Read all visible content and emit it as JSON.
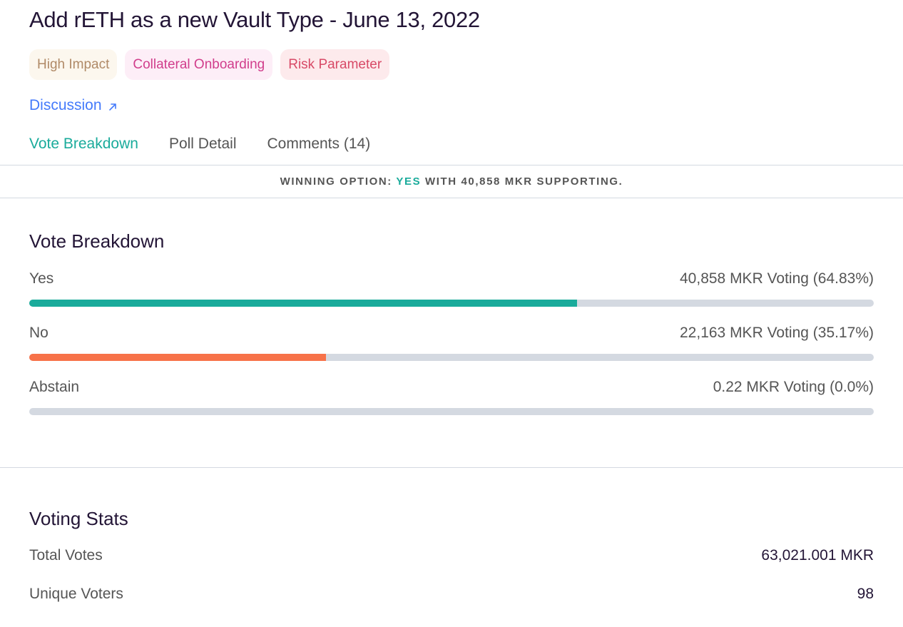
{
  "poll": {
    "title": "Add rETH as a new Vault Type - June 13, 2022",
    "tags": [
      {
        "label": "High Impact",
        "bg": "#fcf7ee",
        "color": "#b08a67"
      },
      {
        "label": "Collateral Onboarding",
        "bg": "#fdeef7",
        "color": "#d13e8c"
      },
      {
        "label": "Risk Parameter",
        "bg": "#fdeaec",
        "color": "#d84a67"
      }
    ],
    "discussion_label": "Discussion"
  },
  "tabs": [
    {
      "label": "Vote Breakdown",
      "active": true
    },
    {
      "label": "Poll Detail",
      "active": false
    },
    {
      "label": "Comments (14)",
      "active": false
    }
  ],
  "winning": {
    "prefix": "WINNING OPTION:",
    "option": "YES",
    "suffix": "WITH 40,858 MKR SUPPORTING."
  },
  "breakdown": {
    "title": "Vote Breakdown",
    "options": [
      {
        "label": "Yes",
        "summary": "40,858 MKR Voting (64.83%)",
        "percent": 64.83,
        "color": "#1aab9b"
      },
      {
        "label": "No",
        "summary": "22,163 MKR Voting (35.17%)",
        "percent": 35.17,
        "color": "#f77249"
      },
      {
        "label": "Abstain",
        "summary": "0.22 MKR Voting (0.0%)",
        "percent": 0.0,
        "color": "#708390"
      }
    ]
  },
  "stats": {
    "title": "Voting Stats",
    "rows": [
      {
        "label": "Total Votes",
        "value": "63,021.001 MKR"
      },
      {
        "label": "Unique Voters",
        "value": "98"
      }
    ]
  }
}
